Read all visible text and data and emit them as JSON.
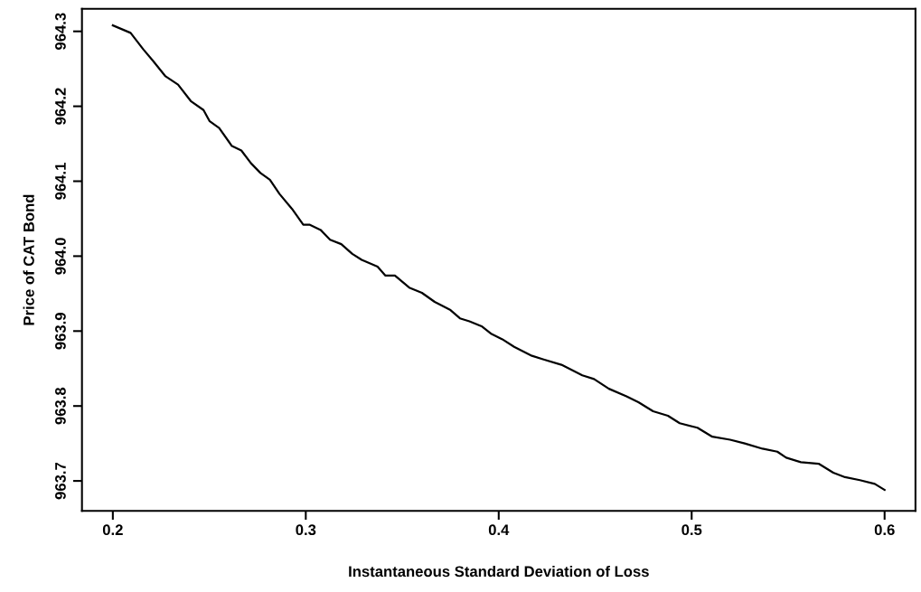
{
  "chart_data": {
    "type": "line",
    "xlabel": "Instantaneous Standard Deviation of Loss",
    "ylabel": "Price of CAT Bond",
    "x": [
      0.2,
      0.2092,
      0.2158,
      0.2207,
      0.2273,
      0.2338,
      0.2404,
      0.247,
      0.2502,
      0.2551,
      0.2617,
      0.2666,
      0.2716,
      0.2765,
      0.2814,
      0.2864,
      0.2929,
      0.2987,
      0.3019,
      0.3077,
      0.3126,
      0.3184,
      0.3241,
      0.329,
      0.3372,
      0.3413,
      0.3462,
      0.3536,
      0.3602,
      0.3668,
      0.375,
      0.3799,
      0.3848,
      0.3914,
      0.3963,
      0.4019,
      0.408,
      0.4172,
      0.4233,
      0.4325,
      0.4433,
      0.4494,
      0.4571,
      0.4662,
      0.4724,
      0.48,
      0.4877,
      0.4938,
      0.503,
      0.5107,
      0.5199,
      0.5275,
      0.5367,
      0.5444,
      0.549,
      0.5566,
      0.5658,
      0.5734,
      0.5795,
      0.5872,
      0.5949,
      0.6
    ],
    "series": [
      {
        "color": "#000000",
        "values": [
          964.308,
          964.298,
          964.276,
          964.261,
          964.24,
          964.229,
          964.207,
          964.195,
          964.18,
          964.171,
          964.147,
          964.141,
          964.124,
          964.111,
          964.102,
          964.083,
          964.063,
          964.042,
          964.042,
          964.035,
          964.022,
          964.016,
          964.003,
          963.995,
          963.986,
          963.974,
          963.974,
          963.958,
          963.951,
          963.939,
          963.928,
          963.917,
          963.913,
          963.906,
          963.896,
          963.889,
          963.879,
          963.867,
          963.862,
          963.855,
          963.841,
          963.836,
          963.823,
          963.813,
          963.805,
          963.793,
          963.787,
          963.777,
          963.771,
          963.759,
          963.755,
          963.75,
          963.743,
          963.739,
          963.731,
          963.725,
          963.723,
          963.711,
          963.705,
          963.701,
          963.696,
          963.688
        ]
      }
    ],
    "xlim": [
      0.184,
      0.616
    ],
    "ylim": [
      963.66,
      964.33
    ],
    "xticks": [
      0.2,
      0.3,
      0.4,
      0.5,
      0.6
    ],
    "yticks": [
      963.7,
      963.8,
      963.9,
      {
        "value": 964.0,
        "label": "964.0"
      },
      964.1,
      964.2,
      964.3
    ],
    "grid": false,
    "legend": false,
    "marker": "none",
    "line_style": "solid"
  }
}
